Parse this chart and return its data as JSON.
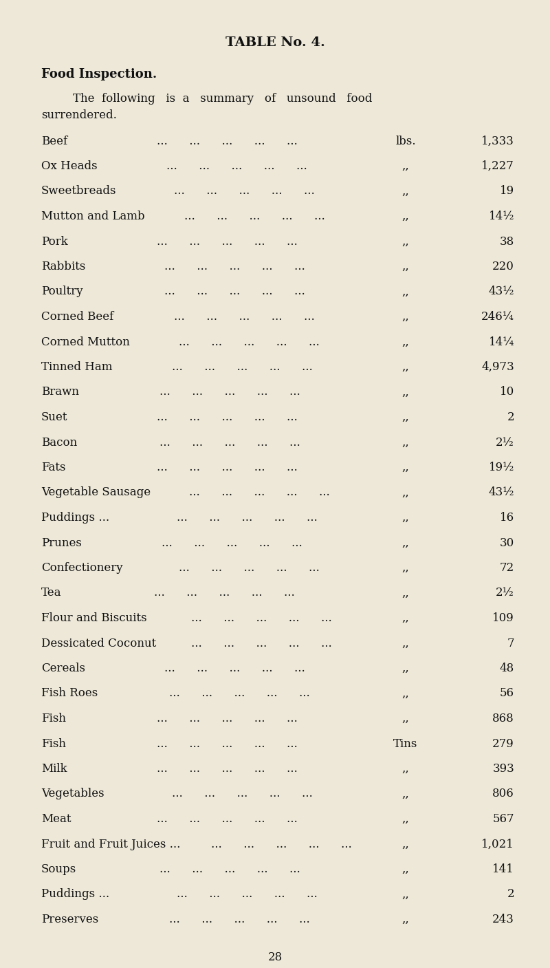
{
  "title": "TABLE No. 4.",
  "subtitle_bold": "Food Inspection.",
  "intro_line1": "    The  following   is  a   summary   of   unsound   food",
  "intro_line2": "surrendered.",
  "rows": [
    {
      "item": "Beef",
      "dots": "...   ...   ...   ...   ...",
      "unit": "lbs.",
      "value": "1,333"
    },
    {
      "item": "Ox Heads",
      "dots": "...   ...   ...   ...   ,,",
      "unit": ",,",
      "value": "1,227"
    },
    {
      "item": "Sweetbreads",
      "dots": "...   ...   ...   ...   ,,",
      "unit": ",,",
      "value": "19"
    },
    {
      "item": "Mutton and Lamb",
      "dots": "...   ...   ...   ,,",
      "unit": ",,",
      "value": "14½"
    },
    {
      "item": "Pork",
      "dots": "...   ...   ...   ...   ...",
      "unit": ",,",
      "value": "38"
    },
    {
      "item": "Rabbits",
      "dots": "...   ...   ...   ...   ...",
      "unit": ",,",
      "value": "220"
    },
    {
      "item": "Poultry",
      "dots": "...   ...   ...   ...   ...",
      "unit": ",,",
      "value": "43½"
    },
    {
      "item": "Corned Beef",
      "dots": "...   ...   ...   ...   ...",
      "unit": ",,",
      "value": "246¼"
    },
    {
      "item": "Corned Mutton",
      "dots": "...   ...   ...   ...   ...",
      "unit": ",,",
      "value": "14¼"
    },
    {
      "item": "Tinned Ham",
      "dots": "...   ...   ...   ...   ...",
      "unit": ",,",
      "value": "4,973"
    },
    {
      "item": "Brawn",
      "dots": "...   ...   ...   ...   ...",
      "unit": ",,",
      "value": "10"
    },
    {
      "item": "Suet",
      "dots": "...   ...   ...   ...   ...",
      "unit": ",,",
      "value": "2"
    },
    {
      "item": "Bacon",
      "dots": "...   ...   ...   ...   ...",
      "unit": ",,",
      "value": "2½"
    },
    {
      "item": "Fats",
      "dots": "...   ...   ...   ...   ...",
      "unit": ",,",
      "value": "19½"
    },
    {
      "item": "Vegetable Sausage",
      "dots": "...   ...   ...   ...",
      "unit": ",,",
      "value": "43½"
    },
    {
      "item": "Puddings ...",
      "dots": "...   ...   ...   ...   ...",
      "unit": ",,",
      "value": "16"
    },
    {
      "item": "Prunes",
      "dots": "...   ...   ...   ...   ...",
      "unit": ",,",
      "value": "30"
    },
    {
      "item": "Confectionery",
      "dots": "...   ...   ...   ...   ...",
      "unit": ",,",
      "value": "72"
    },
    {
      "item": "Tea",
      "dots": "...   ...   ...   ...   ...",
      "unit": ",,",
      "value": "2½"
    },
    {
      "item": "Flour and Biscuits",
      "dots": "...   ...   ...   ...",
      "unit": ",,",
      "value": "109"
    },
    {
      "item": "Dessicated Coconut",
      "dots": "...   ...   ...   ...",
      "unit": ",,",
      "value": "7"
    },
    {
      "item": "Cereals",
      "dots": "...   ...   ...   ...   ...",
      "unit": ",,",
      "value": "48"
    },
    {
      "item": "Fish Roes",
      "dots": "...   ...   ...   ...   ...",
      "unit": ",,",
      "value": "56"
    },
    {
      "item": "Fish",
      "dots": "...   ...   ...   ...   ...",
      "unit": ",,",
      "value": "868"
    },
    {
      "item": "Fish",
      "dots": "...   ...   ...   ...   ...",
      "unit": "Tins",
      "value": "279"
    },
    {
      "item": "Milk",
      "dots": "...   ...   ...   ...   ...",
      "unit": ",,",
      "value": "393"
    },
    {
      "item": "Vegetables",
      "dots": "...   ...   ...   ...   ...",
      "unit": ",,",
      "value": "806"
    },
    {
      "item": "Meat",
      "dots": "...   ...   ...   ...   ...",
      "unit": ",,",
      "value": "567"
    },
    {
      "item": "Fruit and Fruit Juices ...",
      "dots": "...   ...   ...",
      "unit": ",,",
      "value": "1,021"
    },
    {
      "item": "Soups",
      "dots": "...   ...   ...   ...   ...",
      "unit": ",,",
      "value": "141"
    },
    {
      "item": "Puddings ...",
      "dots": "...   ...   ...   ...   ...",
      "unit": ",,",
      "value": "2"
    },
    {
      "item": "Preserves",
      "dots": "...   ...   ...   ...   ...",
      "unit": ",,",
      "value": "243"
    }
  ],
  "page_number": "28",
  "bg_color": "#ede8d8",
  "text_color": "#111111",
  "title_fontsize": 14,
  "subtitle_fontsize": 13,
  "intro_fontsize": 12,
  "row_fontsize": 12,
  "page_fontsize": 12
}
